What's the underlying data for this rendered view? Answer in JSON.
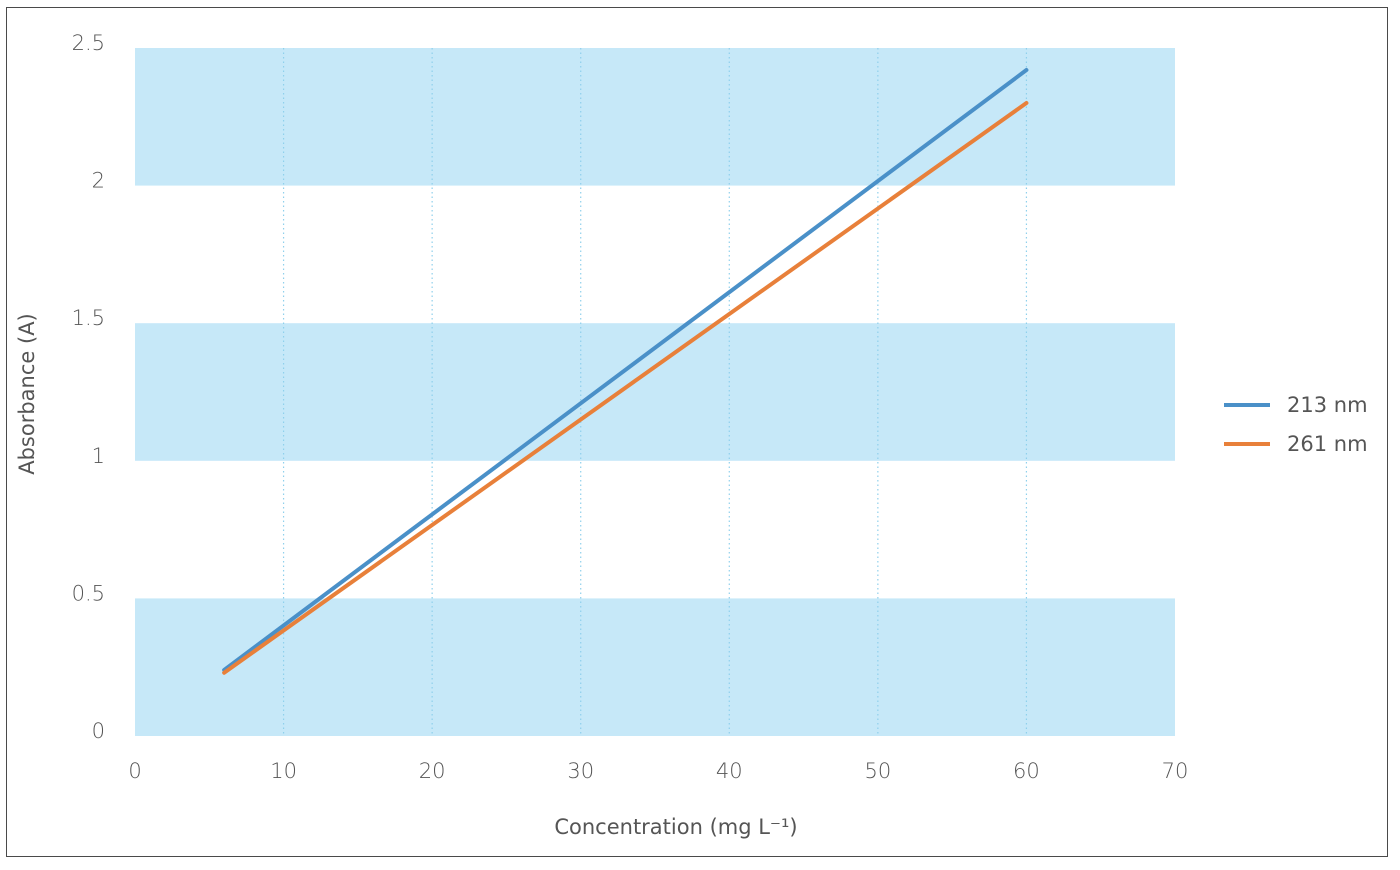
{
  "chart_data": {
    "type": "line",
    "title": "",
    "xlabel": "Concentration (mg L⁻¹)",
    "ylabel": "Absorbance (A)",
    "xlim": [
      0,
      70
    ],
    "ylim": [
      0,
      2.5
    ],
    "xticks": [
      "0",
      "10",
      "20",
      "30",
      "40",
      "50",
      "60",
      "70"
    ],
    "yticks": [
      "0",
      "0.5",
      "1",
      "1.5",
      "2",
      "2.5"
    ],
    "grid": {
      "horizontal_bands": "alternating light blue",
      "vertical": "dotted"
    },
    "legend_position": "right",
    "series": [
      {
        "name": "213 nm",
        "color": "#4a90c8",
        "x": [
          6,
          60
        ],
        "y": [
          0.24,
          2.42
        ]
      },
      {
        "name": "261 nm",
        "color": "#e8803a",
        "x": [
          6,
          60
        ],
        "y": [
          0.23,
          2.3
        ]
      }
    ],
    "band_color": "#c6e8f8",
    "grid_color": "#8fd0ec"
  }
}
